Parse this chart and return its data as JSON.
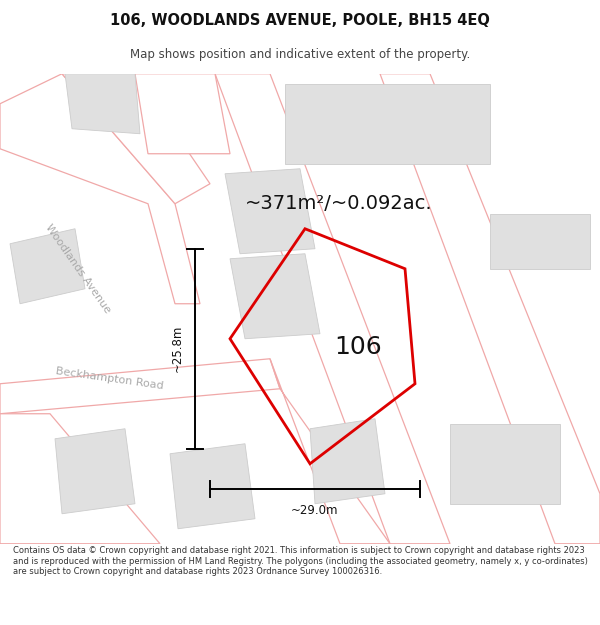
{
  "title_line1": "106, WOODLANDS AVENUE, POOLE, BH15 4EQ",
  "title_line2": "Map shows position and indicative extent of the property.",
  "area_text": "~371m²/~0.092ac.",
  "label_106": "106",
  "dim_vertical": "~25.8m",
  "dim_horizontal": "~29.0m",
  "road_label1": "Woodlands Avenue",
  "road_label2": "Beckhampton Road",
  "footer_text": "Contains OS data © Crown copyright and database right 2021. This information is subject to Crown copyright and database rights 2023 and is reproduced with the permission of HM Land Registry. The polygons (including the associated geometry, namely x, y co-ordinates) are subject to Crown copyright and database rights 2023 Ordnance Survey 100026316.",
  "bg_color": "#ffffff",
  "map_bg": "#ffffff",
  "building_fill": "#e0e0e0",
  "building_edge": "#cccccc",
  "red_line_color": "#dd0000",
  "pink_road_color": "#f0a8a8",
  "text_dark": "#111111",
  "text_gray": "#aaaaaa",
  "text_footer": "#333333",
  "title_fontsize": 10.5,
  "subtitle_fontsize": 8.5,
  "area_fontsize": 14,
  "label_fontsize": 18,
  "dim_fontsize": 8.5,
  "road_label_fontsize": 8,
  "footer_fontsize": 6.0
}
